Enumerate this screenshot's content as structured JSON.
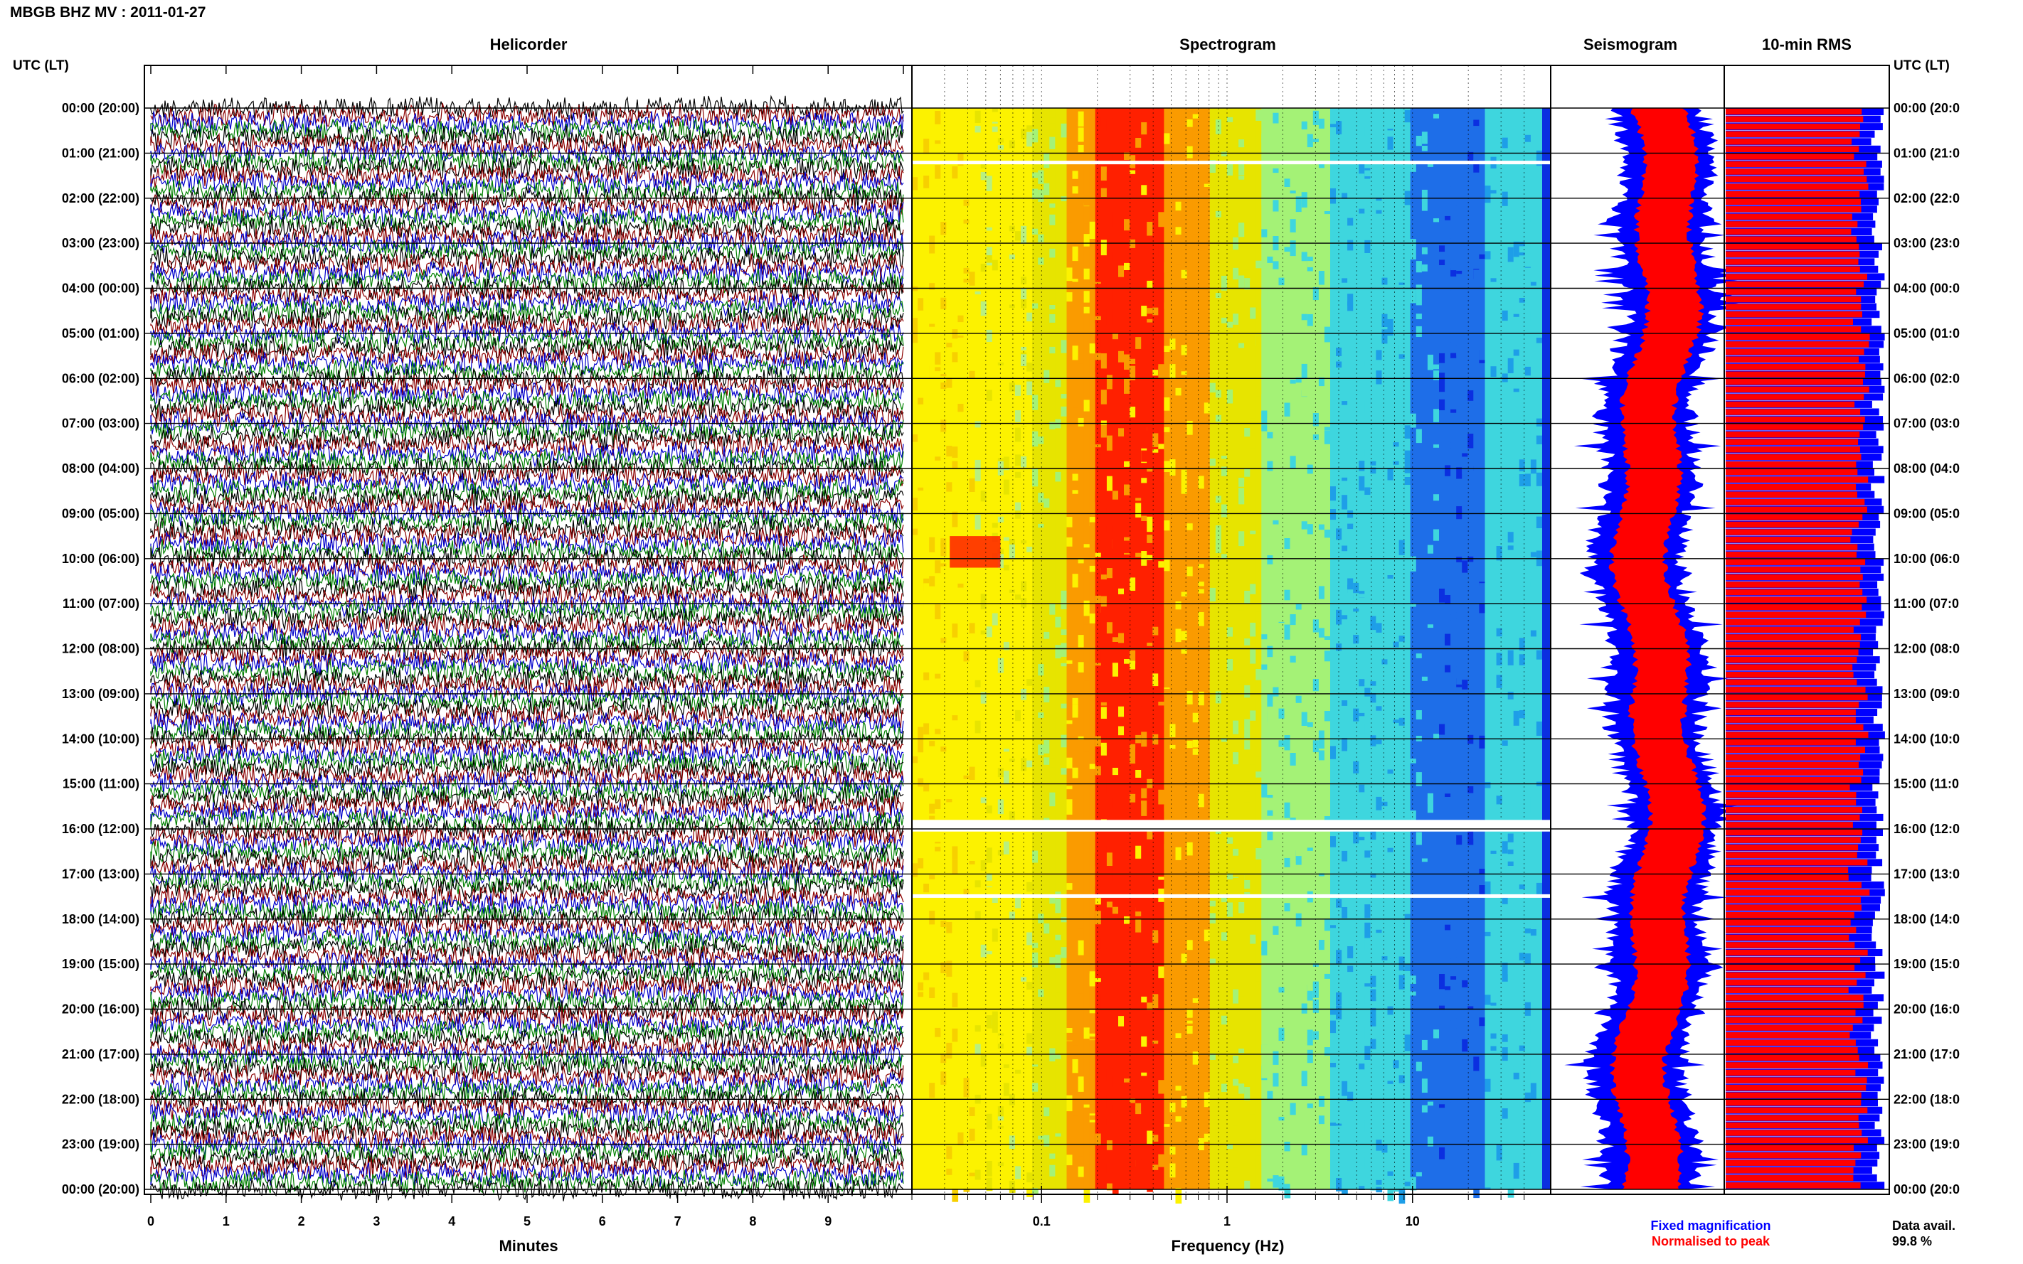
{
  "header": {
    "title": "MBGB BHZ MV : 2011-01-27",
    "utc_label_left": "UTC (LT)",
    "utc_label_right": "UTC (LT)"
  },
  "panels": {
    "helicorder": "Helicorder",
    "spectrogram": "Spectrogram",
    "seismogram": "Seismogram",
    "rms": "10-min RMS"
  },
  "hour_labels": [
    "00:00 (20:00)",
    "01:00 (21:00)",
    "02:00 (22:00)",
    "03:00 (23:00)",
    "04:00 (00:00)",
    "05:00 (01:00)",
    "06:00 (02:00)",
    "07:00 (03:00)",
    "08:00 (04:00)",
    "09:00 (05:00)",
    "10:00 (06:00)",
    "11:00 (07:00)",
    "12:00 (08:00)",
    "13:00 (09:00)",
    "14:00 (10:00)",
    "15:00 (11:00)",
    "16:00 (12:00)",
    "17:00 (13:00)",
    "18:00 (14:00)",
    "19:00 (15:00)",
    "20:00 (16:00)",
    "21:00 (17:00)",
    "22:00 (18:00)",
    "23:00 (19:00)",
    "00:00 (20:00)"
  ],
  "right_hour_labels": [
    "00:00 (20:0",
    "01:00 (21:0",
    "02:00 (22:0",
    "03:00 (23:0",
    "04:00 (00:0",
    "05:00 (01:0",
    "06:00 (02:0",
    "07:00 (03:0",
    "08:00 (04:0",
    "09:00 (05:0",
    "10:00 (06:0",
    "11:00 (07:0",
    "12:00 (08:0",
    "13:00 (09:0",
    "14:00 (10:0",
    "15:00 (11:0",
    "16:00 (12:0",
    "17:00 (13:0",
    "18:00 (14:0",
    "19:00 (15:0",
    "20:00 (16:0",
    "21:00 (17:0",
    "22:00 (18:0",
    "23:00 (19:0",
    "00:00 (20:0"
  ],
  "legend": {
    "fixed": "Fixed magnification",
    "normalised": "Normalised to peak",
    "fixed_color": "#0000ff",
    "normalised_color": "#ff0000"
  },
  "data_availability": {
    "label": "Data avail.",
    "value": "99.8 %"
  },
  "chart_data": [
    {
      "type": "line",
      "title": "Helicorder",
      "xlabel": "Minutes",
      "x_ticks": [
        "0",
        "1",
        "2",
        "3",
        "4",
        "5",
        "6",
        "7",
        "8",
        "9"
      ],
      "xlim": [
        0,
        10
      ],
      "trace_colors": [
        "#000000",
        "#8b0000",
        "#0000cc",
        "#008000"
      ],
      "lines_per_hour": 6
    },
    {
      "type": "heatmap",
      "title": "Spectrogram",
      "xlabel": "Frequency (Hz)",
      "x_ticks": [
        "0.1",
        "1",
        "10"
      ],
      "x_scale": "log",
      "xlim": [
        0.02,
        50
      ],
      "colormap": [
        "#fcf200",
        "#fa9b00",
        "#ff2000",
        "#e7e400",
        "#a4f276",
        "#3ed6de",
        "#1e6ee8",
        "#0b2fe0"
      ],
      "gaps_utc": [
        "01:00",
        "16:00",
        "17:20"
      ]
    },
    {
      "type": "area",
      "title": "Seismogram",
      "series": [
        {
          "name": "Fixed magnification",
          "color": "#0000ff"
        },
        {
          "name": "Normalised to peak",
          "color": "#ff0000"
        }
      ]
    },
    {
      "type": "bar",
      "title": "10-min RMS",
      "bars_per_hour": 6,
      "colors": [
        "#ff0000",
        "#0000ff"
      ]
    }
  ]
}
